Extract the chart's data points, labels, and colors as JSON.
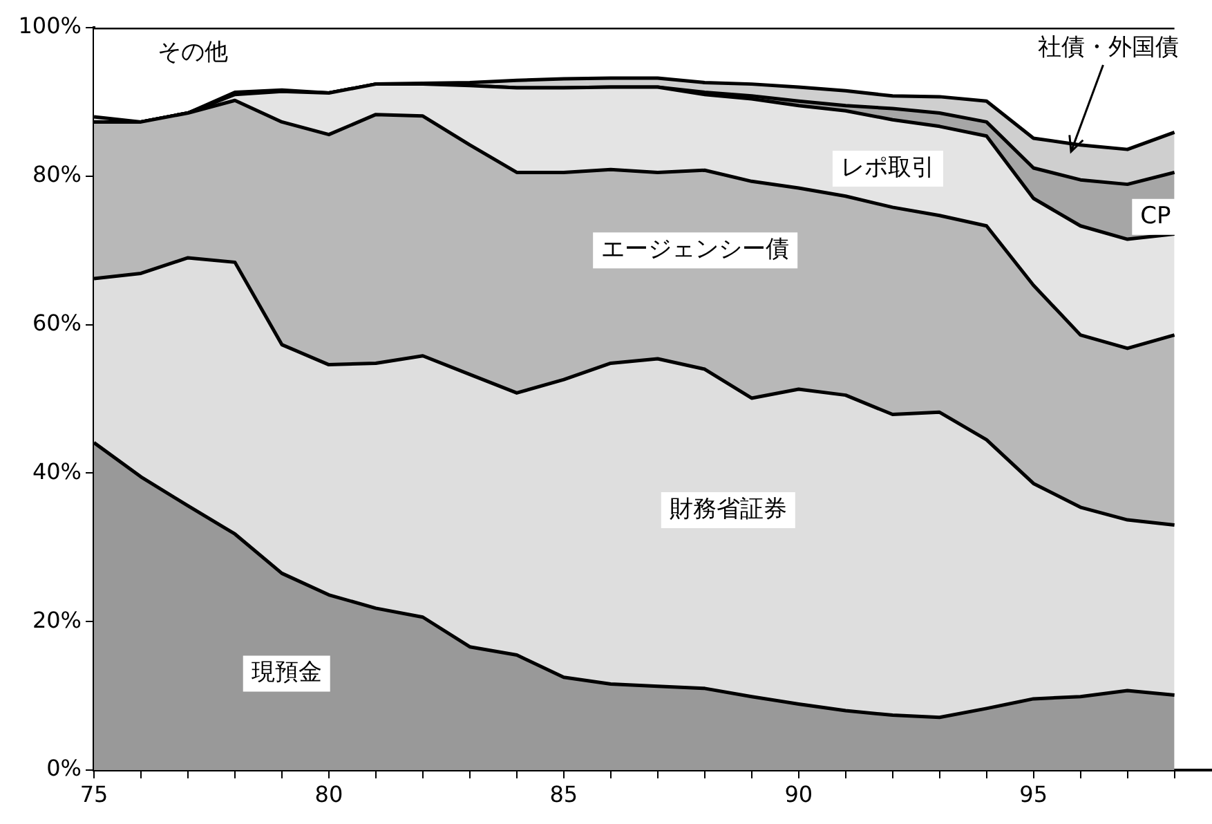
{
  "chart_data": {
    "type": "area",
    "stacked": true,
    "x": [
      75,
      76,
      77,
      78,
      79,
      80,
      81,
      82,
      83,
      84,
      85,
      86,
      87,
      88,
      89,
      90,
      91,
      92,
      93,
      94,
      95,
      96,
      97,
      98
    ],
    "xlim": [
      75,
      98.8
    ],
    "xticks": [
      75,
      {
        "value": 76,
        "label": null
      },
      {
        "value": 77,
        "label": null
      },
      {
        "value": 78,
        "label": null
      },
      {
        "value": 79,
        "label": null
      },
      80,
      {
        "value": 81,
        "label": null
      },
      {
        "value": 82,
        "label": null
      },
      {
        "value": 83,
        "label": null
      },
      {
        "value": 84,
        "label": null
      },
      85,
      {
        "value": 86,
        "label": null
      },
      {
        "value": 87,
        "label": null
      },
      {
        "value": 88,
        "label": null
      },
      {
        "value": 89,
        "label": null
      },
      90,
      {
        "value": 91,
        "label": null
      },
      {
        "value": 92,
        "label": null
      },
      {
        "value": 93,
        "label": null
      },
      {
        "value": 94,
        "label": null
      },
      95,
      {
        "value": 96,
        "label": null
      },
      {
        "value": 97,
        "label": null
      },
      {
        "value": 98,
        "label": null
      }
    ],
    "ylim": [
      0,
      100
    ],
    "yticks": [
      {
        "value": 0,
        "label": "0%"
      },
      {
        "value": 20,
        "label": "20%"
      },
      {
        "value": 40,
        "label": "40%"
      },
      {
        "value": 60,
        "label": "60%"
      },
      {
        "value": 80,
        "label": "80%"
      },
      {
        "value": 100,
        "label": "100%"
      }
    ],
    "grid": false,
    "legend": false,
    "series": [
      {
        "name": "現預金",
        "color": "#999999",
        "values": [
          44.1,
          39.5,
          35.6,
          31.8,
          26.5,
          23.6,
          21.8,
          20.6,
          16.6,
          15.5,
          12.5,
          11.6,
          11.3,
          11.0,
          9.9,
          8.9,
          8.0,
          7.4,
          7.1,
          8.3,
          9.6,
          9.9,
          10.7,
          10.1
        ]
      },
      {
        "name": "財務省証券",
        "color": "#dedede",
        "values": [
          22.1,
          27.4,
          33.4,
          36.6,
          30.8,
          31.0,
          33.0,
          35.2,
          36.7,
          35.3,
          40.1,
          43.2,
          44.1,
          43.0,
          40.2,
          42.4,
          42.5,
          40.5,
          41.1,
          36.2,
          29.0,
          25.5,
          23.0,
          22.9
        ]
      },
      {
        "name": "エージェンシー債",
        "color": "#b8b8b8",
        "values": [
          21.1,
          20.4,
          19.5,
          21.8,
          30.0,
          31.0,
          33.5,
          32.3,
          30.9,
          29.7,
          27.9,
          26.1,
          25.1,
          26.8,
          29.2,
          27.1,
          26.8,
          27.9,
          26.5,
          28.8,
          26.7,
          23.2,
          23.1,
          25.6
        ]
      },
      {
        "name": "レポ取引",
        "color": "#e4e4e4",
        "values": [
          0,
          0,
          0,
          0.8,
          4.1,
          5.6,
          4.1,
          4.3,
          8.0,
          11.4,
          11.4,
          11.1,
          11.5,
          10.2,
          11.1,
          11.1,
          11.5,
          11.8,
          12.0,
          12.1,
          11.7,
          14.7,
          14.7,
          13.6
        ]
      },
      {
        "name": "CP",
        "color": "#a6a6a6",
        "values": [
          0,
          0,
          0,
          0,
          0,
          0,
          0,
          0,
          0,
          0,
          0,
          0,
          0,
          0.3,
          0.4,
          0.6,
          0.7,
          1.5,
          1.8,
          1.9,
          4.1,
          6.2,
          7.4,
          8.3
        ]
      },
      {
        "name": "社債・外国債",
        "color": "#cfcfcf",
        "values": [
          0.7,
          0,
          0,
          0.3,
          0.2,
          0,
          0,
          0.1,
          0.4,
          1.0,
          1.2,
          1.2,
          1.2,
          1.3,
          1.6,
          1.9,
          2.0,
          1.7,
          2.2,
          2.8,
          4.0,
          4.7,
          4.7,
          5.4
        ]
      },
      {
        "name": "その他",
        "color": "#ffffff",
        "values": [
          12.0,
          12.7,
          11.5,
          8.7,
          8.4,
          8.8,
          7.6,
          7.5,
          7.4,
          7.1,
          6.9,
          6.8,
          6.8,
          7.4,
          7.6,
          8.0,
          8.5,
          9.2,
          9.3,
          9.9,
          14.9,
          15.8,
          16.4,
          14.1
        ]
      }
    ]
  }
}
